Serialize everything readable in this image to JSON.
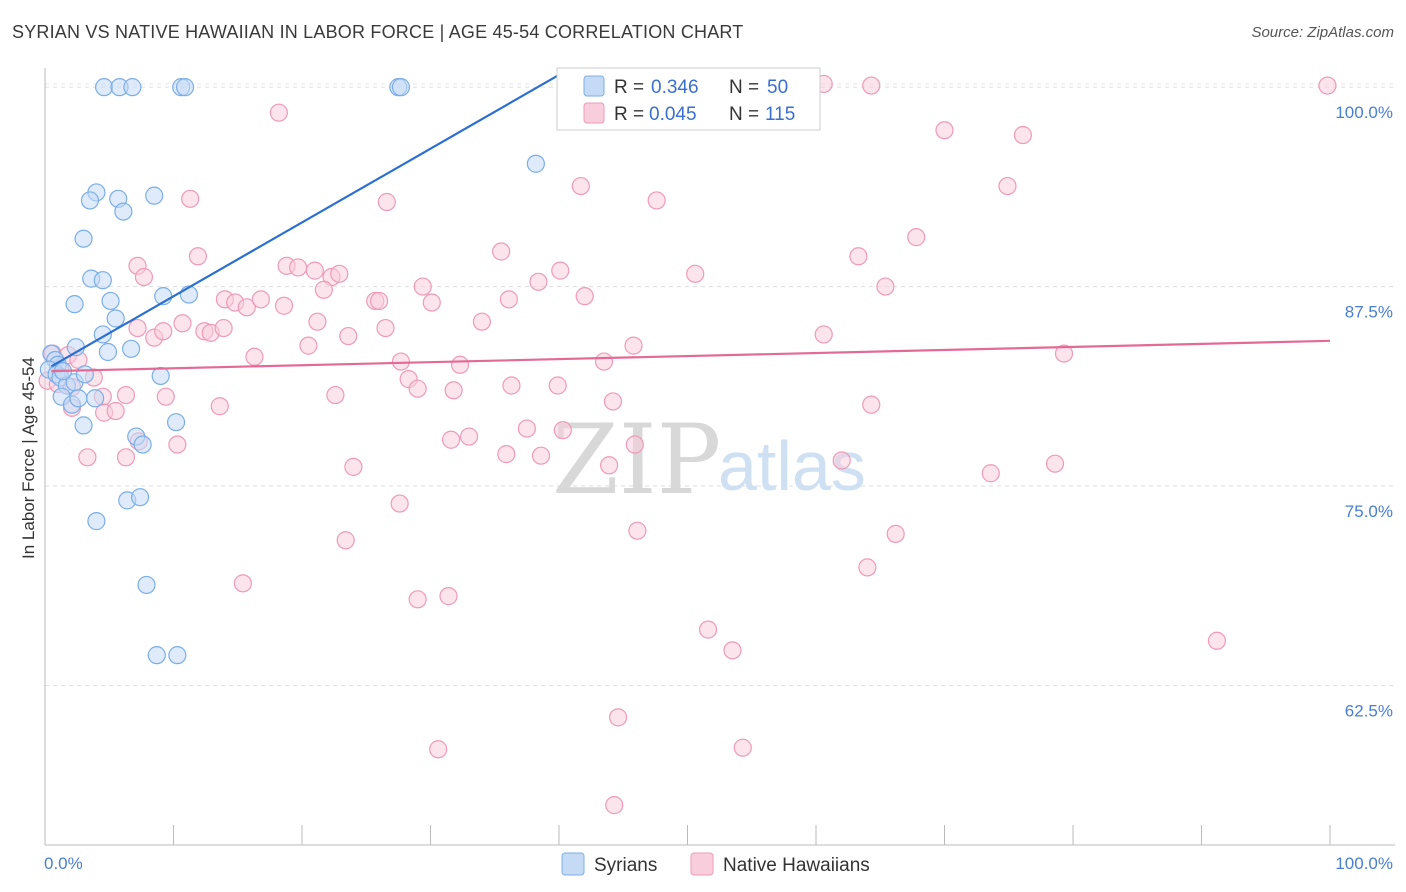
{
  "chart_data": {
    "type": "scatter",
    "title": "SYRIAN VS NATIVE HAWAIIAN IN LABOR FORCE | AGE 45-54 CORRELATION CHART",
    "source": "Source: ZipAtlas.com",
    "ylabel": "In Labor Force | Age 45-54",
    "xlim": [
      0,
      100
    ],
    "ylim": [
      52.5,
      101.2
    ],
    "x_tick_labels": [
      "0.0%",
      "100.0%"
    ],
    "y_ticks": [
      {
        "value": 100,
        "label": "100.0%"
      },
      {
        "value": 87.5,
        "label": "87.5%"
      },
      {
        "value": 75,
        "label": "75.0%"
      },
      {
        "value": 62.5,
        "label": "62.5%"
      }
    ],
    "watermark": {
      "zip": "ZIP",
      "atlas": "atlas"
    },
    "legend": [
      {
        "name": "Syrians",
        "r_label": "R =",
        "r": "0.346",
        "n_label": "N =",
        "n": "50"
      },
      {
        "name": "Native Hawaiians",
        "r_label": "R =",
        "r": "0.045",
        "n_label": "N =",
        "n": "115"
      }
    ],
    "series": [
      {
        "name": "Syrians",
        "color": "#7aaee8",
        "fill": "#c5daf5",
        "line_color": "#2b6fd1",
        "trend": {
          "x0": 0.5,
          "y0": 82.5,
          "x1": 40.5,
          "y1": 101.0
        },
        "points": [
          [
            4.6,
            100
          ],
          [
            5.8,
            100
          ],
          [
            6.8,
            100
          ],
          [
            10.6,
            100
          ],
          [
            10.9,
            100
          ],
          [
            27.5,
            100
          ],
          [
            27.7,
            100
          ],
          [
            38.2,
            95.2
          ],
          [
            4.0,
            93.4
          ],
          [
            3.5,
            92.9
          ],
          [
            5.7,
            93.0
          ],
          [
            6.1,
            92.2
          ],
          [
            8.5,
            93.2
          ],
          [
            3.0,
            90.5
          ],
          [
            3.6,
            88.0
          ],
          [
            4.5,
            87.9
          ],
          [
            5.1,
            86.6
          ],
          [
            9.2,
            86.9
          ],
          [
            11.2,
            87.0
          ],
          [
            2.3,
            86.4
          ],
          [
            5.5,
            85.5
          ],
          [
            4.5,
            84.5
          ],
          [
            0.5,
            83.3
          ],
          [
            0.8,
            82.9
          ],
          [
            1.0,
            82.6
          ],
          [
            2.4,
            83.7
          ],
          [
            4.9,
            83.4
          ],
          [
            6.7,
            83.6
          ],
          [
            0.3,
            82.3
          ],
          [
            0.9,
            82.0
          ],
          [
            1.2,
            81.8
          ],
          [
            1.7,
            81.3
          ],
          [
            2.3,
            81.5
          ],
          [
            3.1,
            82.0
          ],
          [
            9.0,
            81.9
          ],
          [
            1.3,
            80.6
          ],
          [
            2.1,
            80.1
          ],
          [
            2.6,
            80.5
          ],
          [
            3.9,
            80.5
          ],
          [
            3.0,
            78.8
          ],
          [
            10.2,
            79.0
          ],
          [
            7.1,
            78.1
          ],
          [
            7.6,
            77.6
          ],
          [
            6.4,
            74.1
          ],
          [
            7.4,
            74.3
          ],
          [
            4.0,
            72.8
          ],
          [
            7.9,
            68.8
          ],
          [
            8.7,
            64.4
          ],
          [
            10.3,
            64.4
          ],
          [
            1.4,
            82.2
          ]
        ]
      },
      {
        "name": "Native Hawaiians",
        "color": "#ef9ab7",
        "fill": "#f8cedd",
        "line_color": "#e46a96",
        "trend": {
          "x0": 0.5,
          "y0": 82.2,
          "x1": 100,
          "y1": 84.1
        },
        "points": [
          [
            41.5,
            100.2
          ],
          [
            59.2,
            100.1
          ],
          [
            59.6,
            100.2
          ],
          [
            60.6,
            100.2
          ],
          [
            64.3,
            100.1
          ],
          [
            99.8,
            100.1
          ],
          [
            18.2,
            98.4
          ],
          [
            46.8,
            98.3
          ],
          [
            70.0,
            97.3
          ],
          [
            76.1,
            97.0
          ],
          [
            41.7,
            93.8
          ],
          [
            74.9,
            93.8
          ],
          [
            11.3,
            93.0
          ],
          [
            26.6,
            92.8
          ],
          [
            47.6,
            92.9
          ],
          [
            67.8,
            90.6
          ],
          [
            35.5,
            89.7
          ],
          [
            11.9,
            89.4
          ],
          [
            63.3,
            89.4
          ],
          [
            7.2,
            88.8
          ],
          [
            18.8,
            88.8
          ],
          [
            19.7,
            88.7
          ],
          [
            21.0,
            88.5
          ],
          [
            22.3,
            88.1
          ],
          [
            22.9,
            88.3
          ],
          [
            40.1,
            88.5
          ],
          [
            50.6,
            88.3
          ],
          [
            7.7,
            88.1
          ],
          [
            38.4,
            87.8
          ],
          [
            29.4,
            87.5
          ],
          [
            21.7,
            87.3
          ],
          [
            65.4,
            87.5
          ],
          [
            14.0,
            86.7
          ],
          [
            14.8,
            86.5
          ],
          [
            15.7,
            86.2
          ],
          [
            16.8,
            86.7
          ],
          [
            18.6,
            86.3
          ],
          [
            25.7,
            86.6
          ],
          [
            26.0,
            86.6
          ],
          [
            30.1,
            86.5
          ],
          [
            36.1,
            86.7
          ],
          [
            42.0,
            86.9
          ],
          [
            7.2,
            84.9
          ],
          [
            8.5,
            84.3
          ],
          [
            9.2,
            84.7
          ],
          [
            10.7,
            85.2
          ],
          [
            12.4,
            84.7
          ],
          [
            12.9,
            84.6
          ],
          [
            13.9,
            84.9
          ],
          [
            21.2,
            85.3
          ],
          [
            23.6,
            84.4
          ],
          [
            26.5,
            84.9
          ],
          [
            34.0,
            85.3
          ],
          [
            60.6,
            84.5
          ],
          [
            0.6,
            83.3
          ],
          [
            1.2,
            82.3
          ],
          [
            1.8,
            83.2
          ],
          [
            2.6,
            82.9
          ],
          [
            16.3,
            83.1
          ],
          [
            20.5,
            83.8
          ],
          [
            27.7,
            82.8
          ],
          [
            32.3,
            82.6
          ],
          [
            43.5,
            82.8
          ],
          [
            45.8,
            83.8
          ],
          [
            79.3,
            83.3
          ],
          [
            0.2,
            81.6
          ],
          [
            1.0,
            81.4
          ],
          [
            2.1,
            81.2
          ],
          [
            3.8,
            81.8
          ],
          [
            4.5,
            80.6
          ],
          [
            6.3,
            80.7
          ],
          [
            9.4,
            80.6
          ],
          [
            22.6,
            80.7
          ],
          [
            28.3,
            81.7
          ],
          [
            29.0,
            81.1
          ],
          [
            31.8,
            81.0
          ],
          [
            36.3,
            81.3
          ],
          [
            39.9,
            81.3
          ],
          [
            44.2,
            80.3
          ],
          [
            64.3,
            80.1
          ],
          [
            2.1,
            79.9
          ],
          [
            4.6,
            79.6
          ],
          [
            5.5,
            79.7
          ],
          [
            13.6,
            80.0
          ],
          [
            7.3,
            77.8
          ],
          [
            10.3,
            77.6
          ],
          [
            31.6,
            77.9
          ],
          [
            33.0,
            78.1
          ],
          [
            35.9,
            77.0
          ],
          [
            37.5,
            78.6
          ],
          [
            40.3,
            78.5
          ],
          [
            45.9,
            77.6
          ],
          [
            3.3,
            76.8
          ],
          [
            6.3,
            76.8
          ],
          [
            38.6,
            76.9
          ],
          [
            24.0,
            76.2
          ],
          [
            43.9,
            76.3
          ],
          [
            62.0,
            76.6
          ],
          [
            73.6,
            75.8
          ],
          [
            78.6,
            76.4
          ],
          [
            27.6,
            73.9
          ],
          [
            46.1,
            72.2
          ],
          [
            23.4,
            71.6
          ],
          [
            66.2,
            72.0
          ],
          [
            64.0,
            69.9
          ],
          [
            15.4,
            68.9
          ],
          [
            29.0,
            67.9
          ],
          [
            31.4,
            68.1
          ],
          [
            51.6,
            66.0
          ],
          [
            53.5,
            64.7
          ],
          [
            91.2,
            65.3
          ],
          [
            44.6,
            60.5
          ],
          [
            30.6,
            58.5
          ],
          [
            54.3,
            58.6
          ],
          [
            44.3,
            55.0
          ]
        ]
      }
    ]
  }
}
